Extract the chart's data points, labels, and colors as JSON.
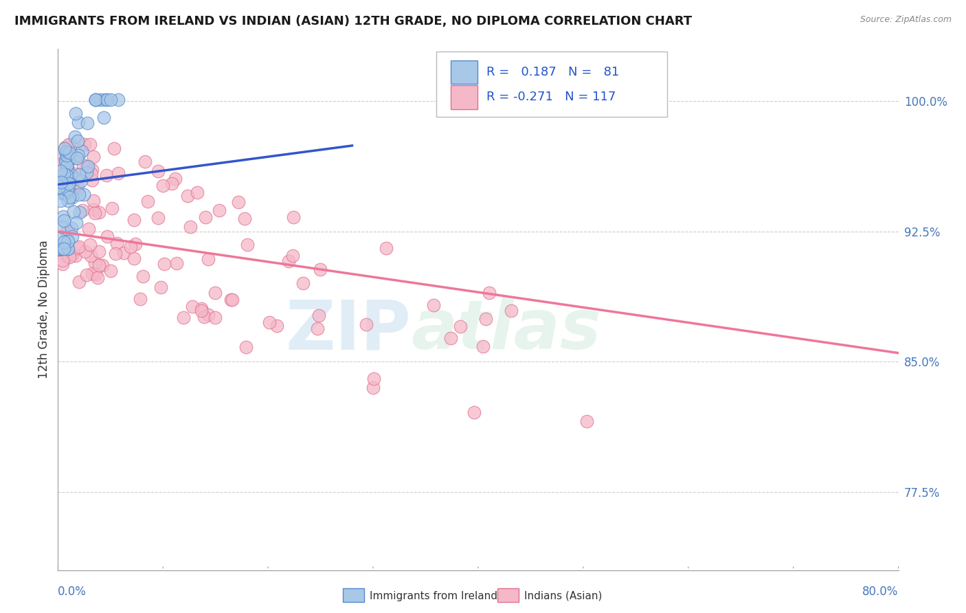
{
  "title": "IMMIGRANTS FROM IRELAND VS INDIAN (ASIAN) 12TH GRADE, NO DIPLOMA CORRELATION CHART",
  "source_text": "Source: ZipAtlas.com",
  "ylabel": "12th Grade, No Diploma",
  "yaxis_labels": [
    "77.5%",
    "85.0%",
    "92.5%",
    "100.0%"
  ],
  "yaxis_values": [
    0.775,
    0.85,
    0.925,
    1.0
  ],
  "xlim": [
    0.0,
    0.8
  ],
  "ylim": [
    0.73,
    1.03
  ],
  "ireland_color": "#a8c8e8",
  "ireland_edge": "#5588cc",
  "indian_color": "#f5b8c8",
  "indian_edge": "#e07090",
  "ireland_line_color": "#3355cc",
  "indian_line_color": "#ee7799",
  "ireland_R": 0.187,
  "ireland_N": 81,
  "indian_R": -0.271,
  "indian_N": 117,
  "legend_label_ireland": "Immigrants from Ireland",
  "legend_label_indian": "Indians (Asian)",
  "watermark_zip": "ZIP",
  "watermark_atlas": "atlas"
}
